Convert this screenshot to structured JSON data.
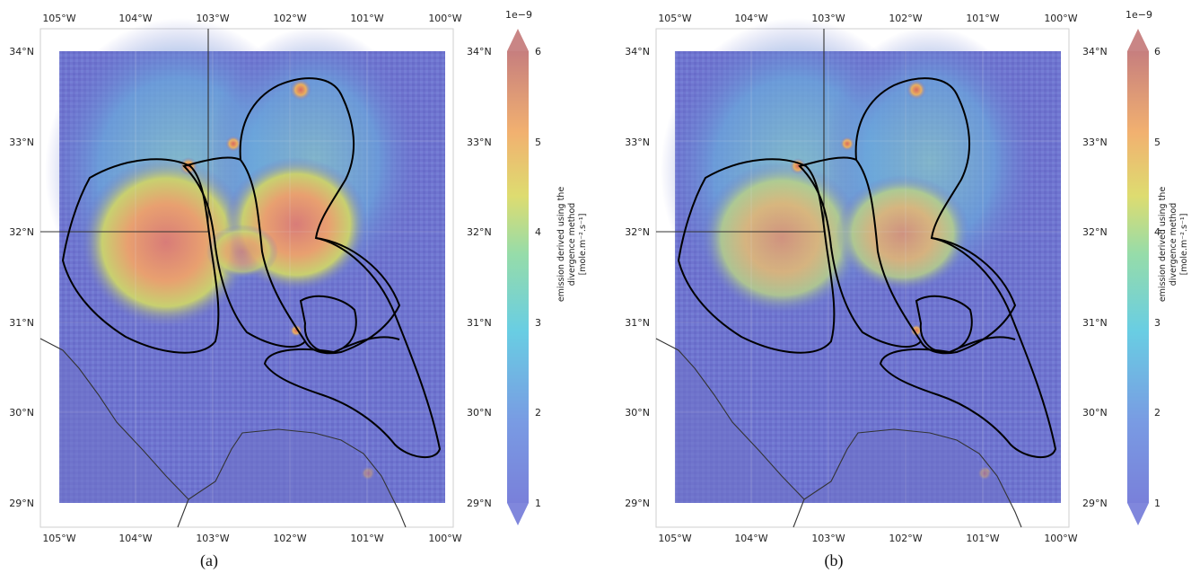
{
  "figure": {
    "colors": {
      "map_background": "#6f74cf",
      "colormap": [
        "#6a72d6",
        "#58b8e2",
        "#78d7b0",
        "#d7d660",
        "#f0a860",
        "#dd7c74",
        "#c07070"
      ],
      "outline": "#000000",
      "border_line": "#333333",
      "grid_line": "#d8d8d8"
    },
    "x_ticks": [
      "105°W",
      "104°W",
      "103°W",
      "102°W",
      "101°W",
      "100°W"
    ],
    "y_ticks": [
      "34°N",
      "33°N",
      "32°N",
      "31°N",
      "30°N",
      "29°N"
    ],
    "colorbar": {
      "exponent": "1e−9",
      "ticks": [
        "6",
        "5",
        "4",
        "3",
        "2",
        "1"
      ],
      "label_line1": "emission derived using the",
      "label_line2": "divergence method",
      "label_line3": "[mole.m⁻².s⁻¹]"
    },
    "panels": [
      {
        "caption": "(a)",
        "hotspot_intensity": "higher"
      },
      {
        "caption": "(b)",
        "hotspot_intensity": "lower"
      }
    ]
  }
}
